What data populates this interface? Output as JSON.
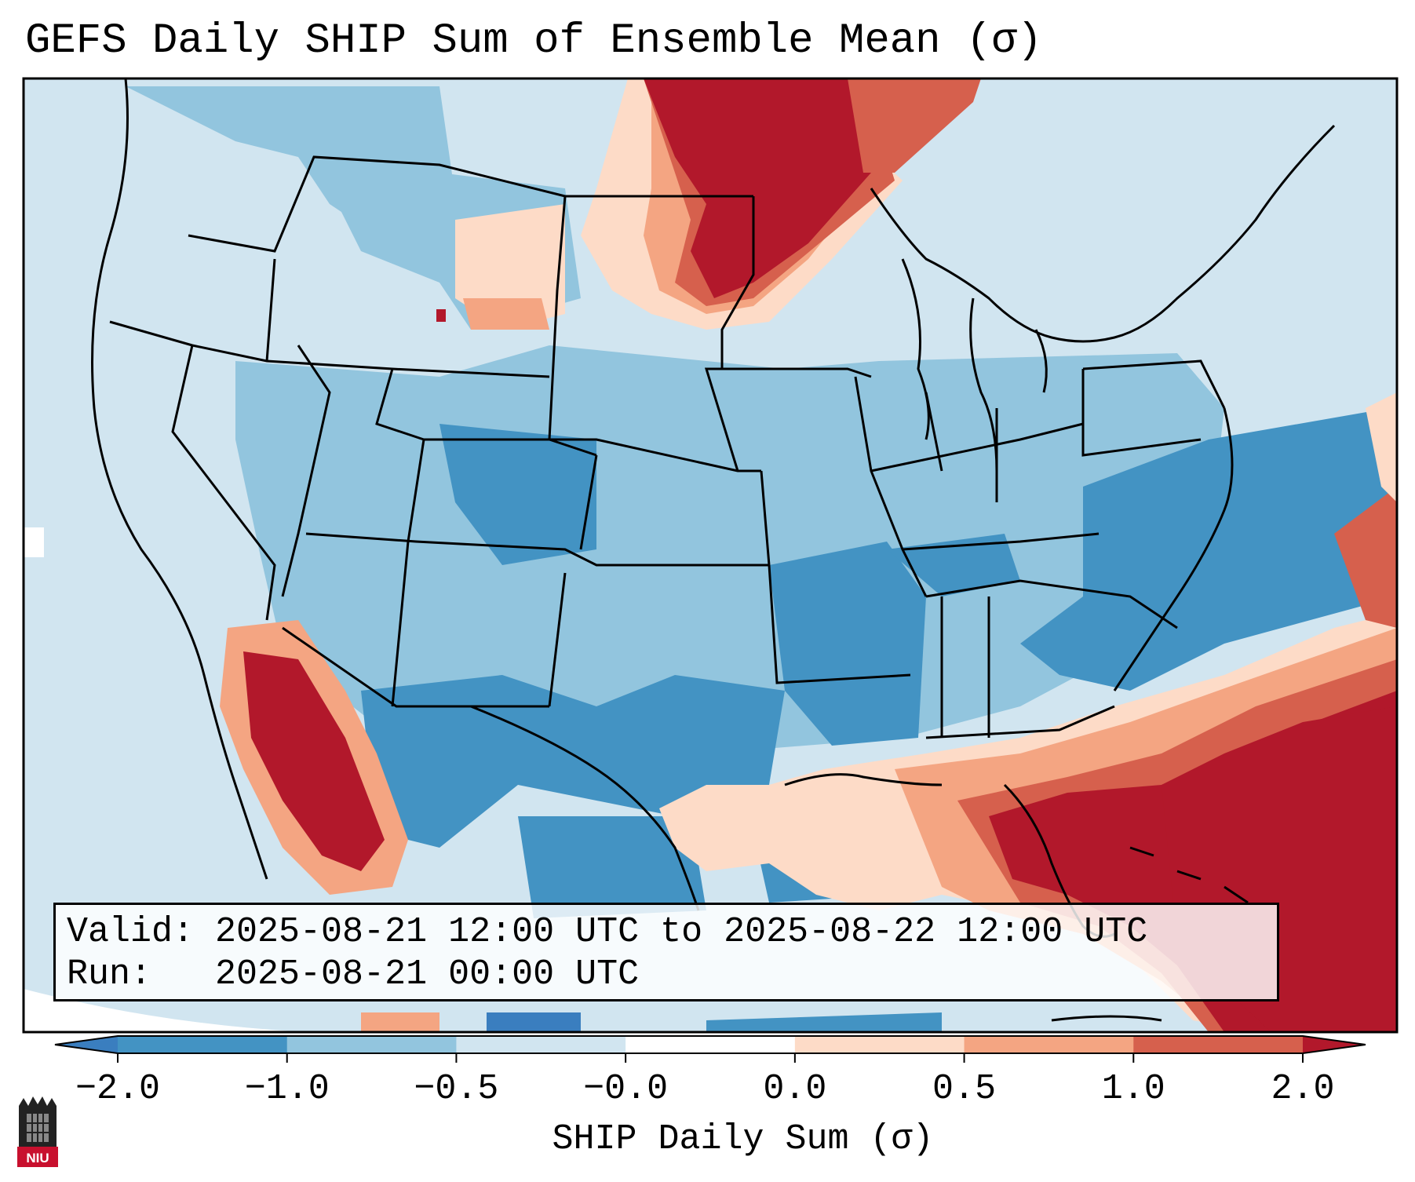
{
  "title": "GEFS Daily SHIP Sum of Ensemble Mean (σ)",
  "valid_line": "Valid: 2025-08-21 12:00 UTC to 2025-08-22 12:00 UTC",
  "run_line": "Run:   2025-08-21 00:00 UTC",
  "colorbar": {
    "label": "SHIP Daily Sum (σ)",
    "ticks": [
      "−2.0",
      "−1.0",
      "−0.5",
      "−0.0",
      "0.0",
      "0.5",
      "1.0",
      "2.0"
    ],
    "colors": [
      "#3a7ebf",
      "#4393c3",
      "#92c5de",
      "#d1e5f0",
      "#ffffff",
      "#fddbc7",
      "#f4a582",
      "#d6604d",
      "#b2182b"
    ]
  },
  "logo_text": "NIU",
  "icons": {
    "logo": "university-tower-icon"
  }
}
